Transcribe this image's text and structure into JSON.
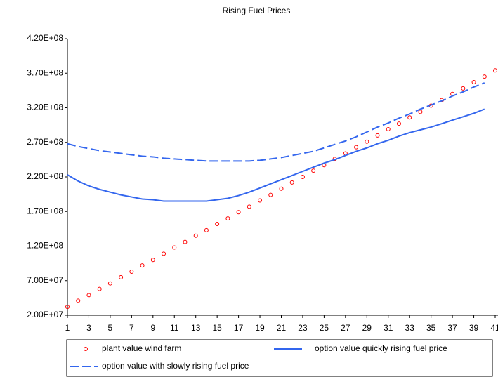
{
  "chart_data": {
    "type": "line",
    "title": "Rising Fuel Prices",
    "x": [
      1,
      2,
      3,
      4,
      5,
      6,
      7,
      8,
      9,
      10,
      11,
      12,
      13,
      14,
      15,
      16,
      17,
      18,
      19,
      20,
      21,
      22,
      23,
      24,
      25,
      26,
      27,
      28,
      29,
      30,
      31,
      32,
      33,
      34,
      35,
      36,
      37,
      38,
      39,
      40,
      41
    ],
    "xlim": [
      1,
      41
    ],
    "xticks": [
      1,
      3,
      5,
      7,
      9,
      11,
      13,
      15,
      17,
      19,
      21,
      23,
      25,
      27,
      29,
      31,
      33,
      35,
      37,
      39,
      41
    ],
    "ylim": [
      20000000,
      420000000
    ],
    "yticks": [
      {
        "value": 20000000,
        "label": "2.00E+07"
      },
      {
        "value": 70000000,
        "label": "7.00E+07"
      },
      {
        "value": 120000000,
        "label": "1.20E+08"
      },
      {
        "value": 170000000,
        "label": "1.70E+08"
      },
      {
        "value": 220000000,
        "label": "2.20E+08"
      },
      {
        "value": 270000000,
        "label": "2.70E+08"
      },
      {
        "value": 320000000,
        "label": "3.20E+08"
      },
      {
        "value": 370000000,
        "label": "3.70E+08"
      },
      {
        "value": 420000000,
        "label": "4.20E+08"
      }
    ],
    "grid": false,
    "legend": "bottom",
    "series": [
      {
        "name": "plant value wind farm",
        "color": "#ff0000",
        "style": "markers",
        "values": [
          32000000,
          41000000,
          49000000,
          58000000,
          66000000,
          75000000,
          83000000,
          92000000,
          100000000,
          109000000,
          118000000,
          126000000,
          135000000,
          143000000,
          152000000,
          160000000,
          169000000,
          177000000,
          186000000,
          194000000,
          203000000,
          212000000,
          220000000,
          229000000,
          237000000,
          246000000,
          254000000,
          263000000,
          271000000,
          280000000,
          289000000,
          297000000,
          306000000,
          314000000,
          323000000,
          331000000,
          340000000,
          348000000,
          357000000,
          365000000,
          374000000
        ]
      },
      {
        "name": "option value quickly rising fuel price",
        "color": "#3366ee",
        "style": "solid",
        "values": [
          223000000,
          214000000,
          207000000,
          202000000,
          198000000,
          194000000,
          191000000,
          188000000,
          187000000,
          185000000,
          185000000,
          185000000,
          185000000,
          185000000,
          187000000,
          189000000,
          193000000,
          198000000,
          204000000,
          210000000,
          216000000,
          222000000,
          228000000,
          234000000,
          240000000,
          245000000,
          251000000,
          257000000,
          262000000,
          268000000,
          273000000,
          279000000,
          284000000,
          288000000,
          292000000,
          297000000,
          302000000,
          307000000,
          312000000,
          318000000,
          null
        ]
      },
      {
        "name": "option value with slowly rising fuel price",
        "color": "#3366ee",
        "style": "dashed",
        "values": [
          268000000,
          264000000,
          261000000,
          258000000,
          256000000,
          254000000,
          252000000,
          250000000,
          249000000,
          247000000,
          246000000,
          245000000,
          244000000,
          243000000,
          243000000,
          243000000,
          243000000,
          243000000,
          244000000,
          246000000,
          248000000,
          251000000,
          254000000,
          257000000,
          262000000,
          267000000,
          272000000,
          278000000,
          285000000,
          292000000,
          298000000,
          305000000,
          311000000,
          318000000,
          324000000,
          330000000,
          337000000,
          343000000,
          350000000,
          356000000,
          null
        ]
      }
    ]
  }
}
